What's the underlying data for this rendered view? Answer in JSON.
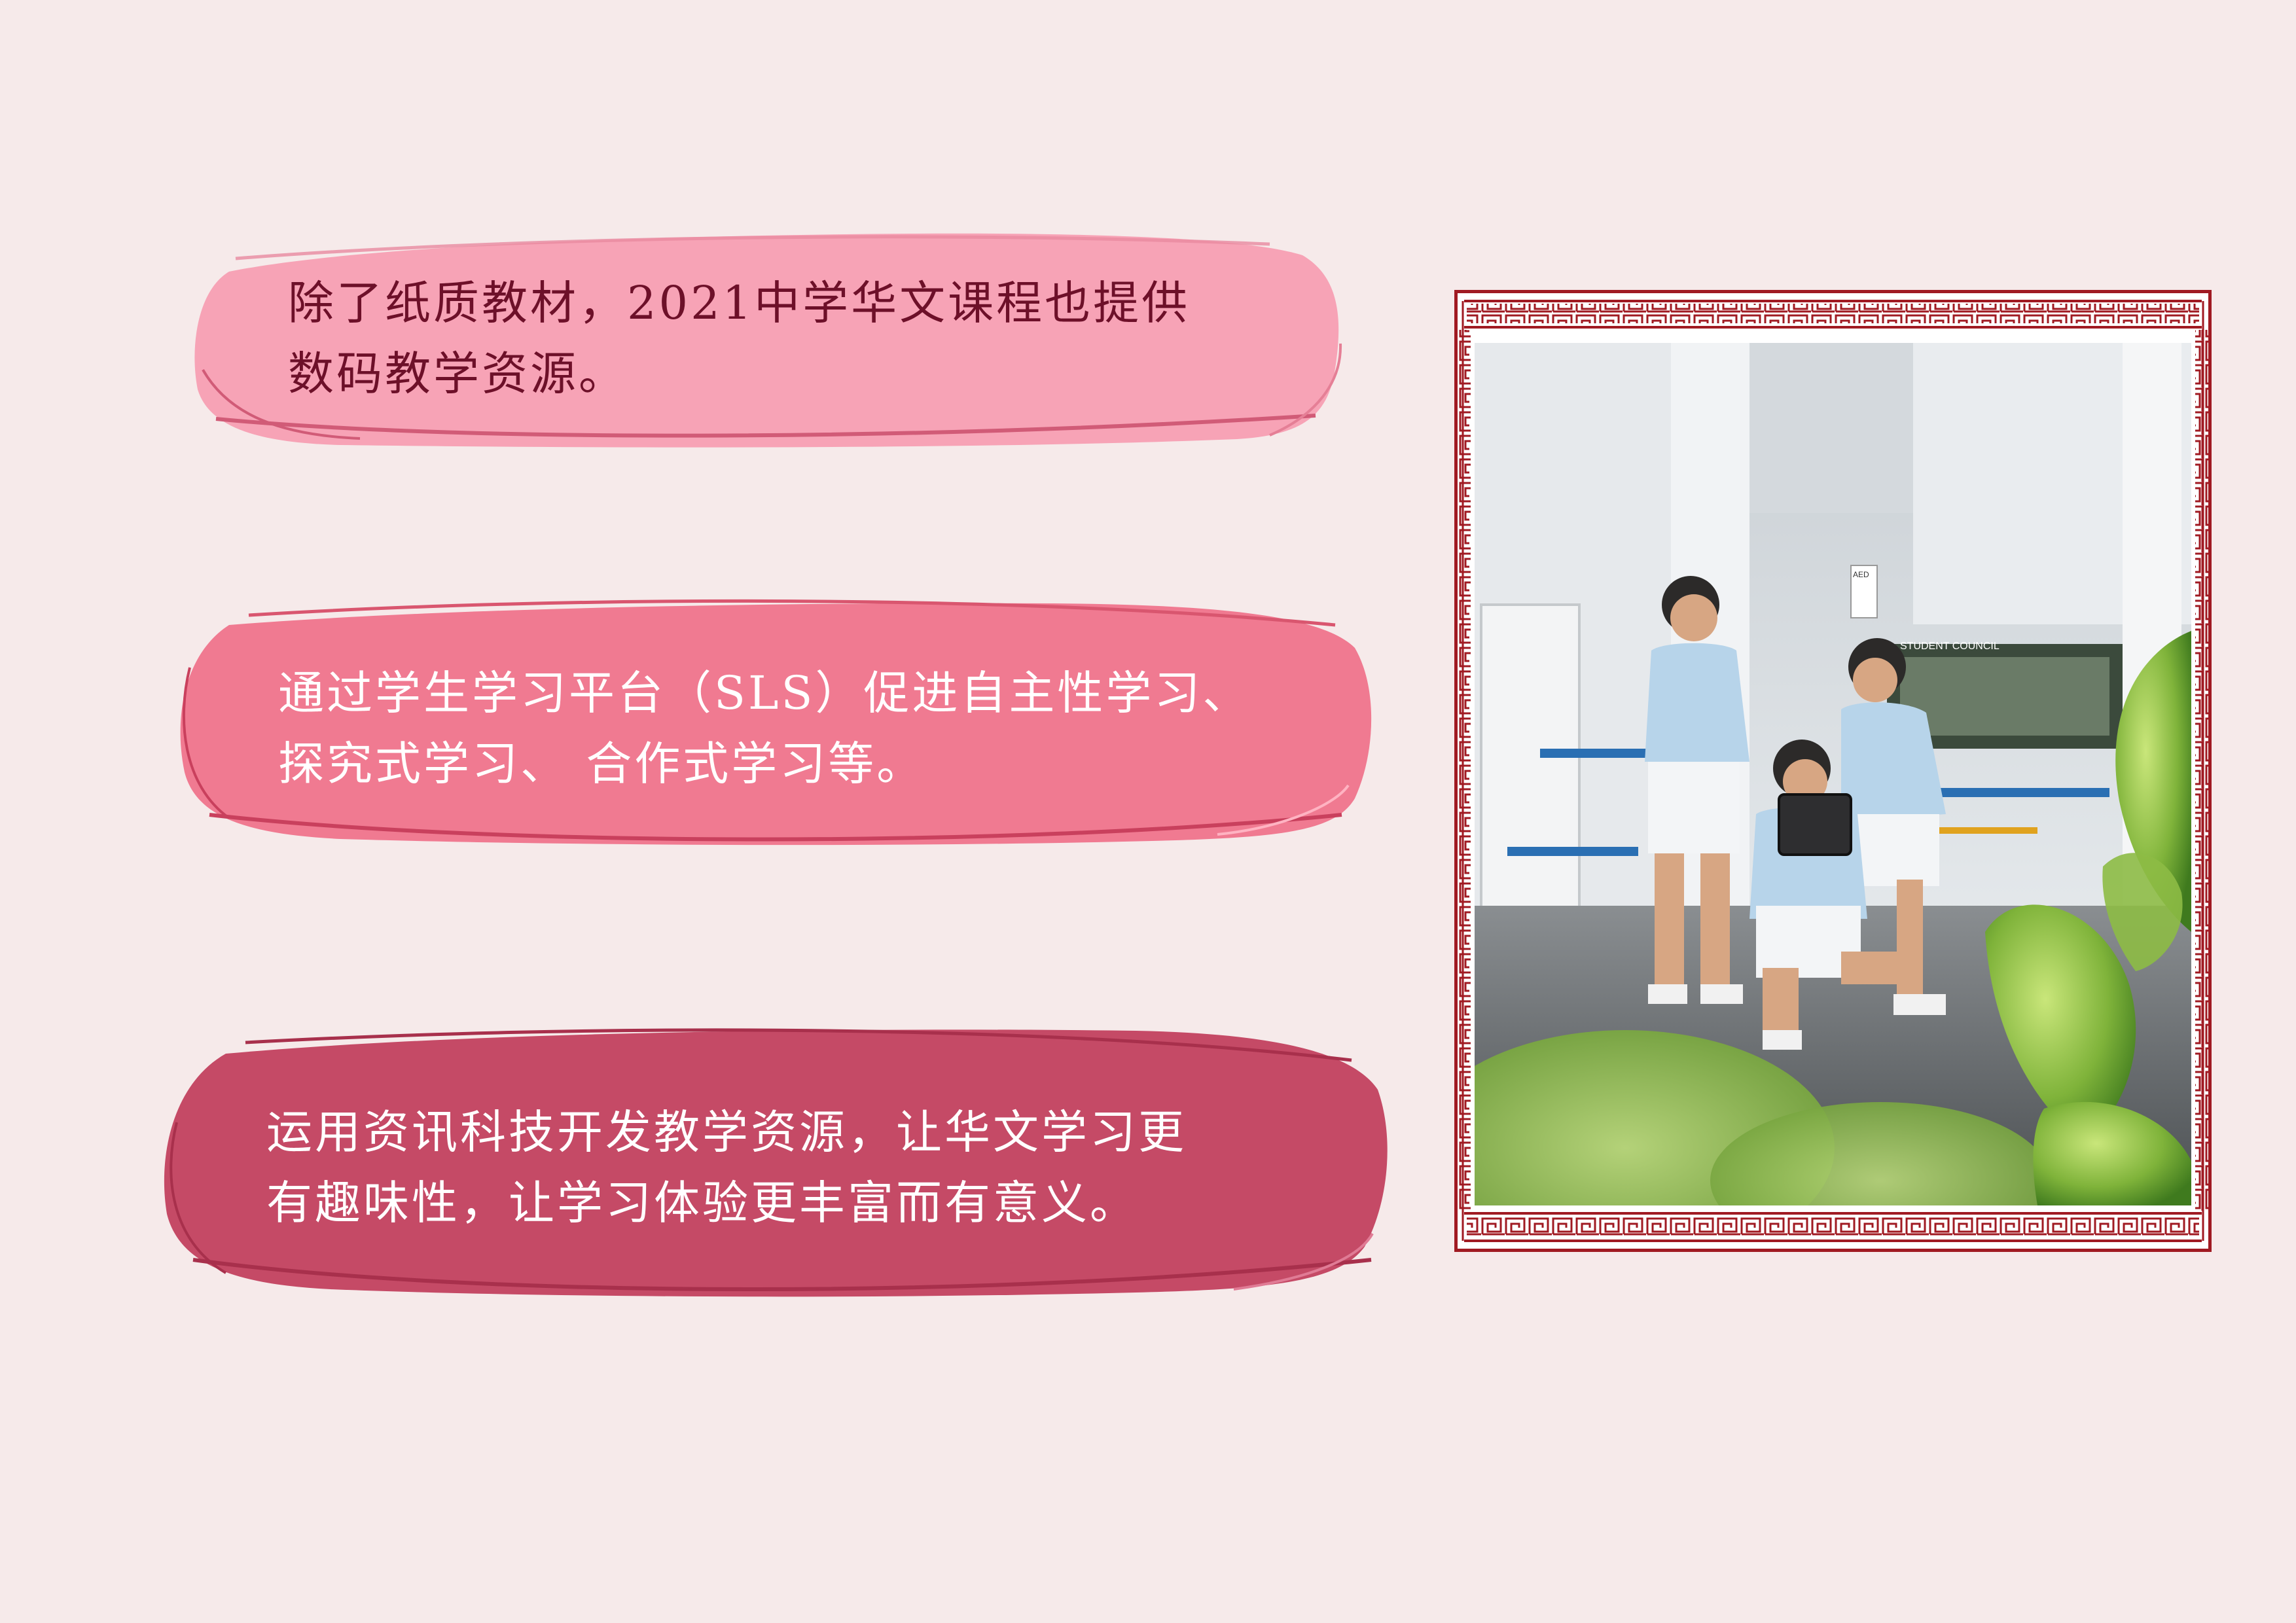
{
  "page": {
    "background_color": "#f6eaea"
  },
  "panels": [
    {
      "lines": [
        "除了纸质教材，2021中学华文课程也提供",
        "数码教学资源。"
      ],
      "fill_color": "#f7a3b6",
      "text_color": "#6d1029"
    },
    {
      "lines": [
        "通过学生学习平台（SLS）促进自主性学习、",
        "探究式学习、 合作式学习等。"
      ],
      "fill_color": "#f07a91",
      "text_color": "#ffffff"
    },
    {
      "lines": [
        "运用资讯科技开发教学资源，让华文学习更",
        "有趣味性，让学习体验更丰富而有意义。"
      ],
      "fill_color": "#c54a66",
      "text_color": "#ffffff"
    }
  ],
  "photo": {
    "frame_color": "#a01a22",
    "frame_pattern": "chinese-meander-key",
    "sign_aed": "AED",
    "sign_student_council": "STUDENT COUNCIL"
  }
}
